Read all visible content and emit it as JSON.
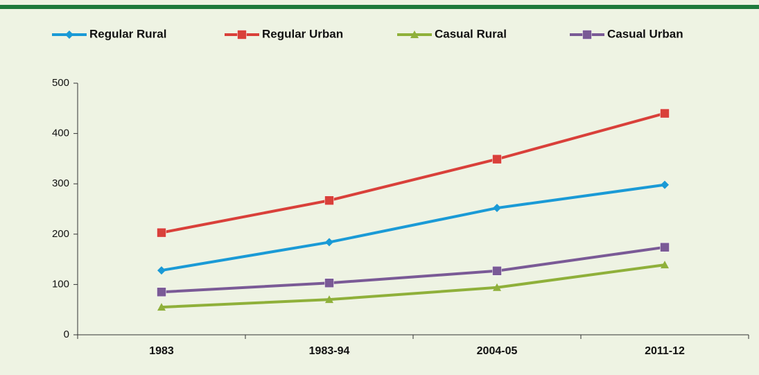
{
  "chart_data": {
    "type": "line",
    "categories": [
      "1983",
      "1983-94",
      "2004-05",
      "2011-12"
    ],
    "series": [
      {
        "name": "Regular Rural",
        "color": "#1a9ad6",
        "marker": "diamond",
        "values": [
          128,
          184,
          252,
          298
        ]
      },
      {
        "name": "Regular Urban",
        "color": "#d9403a",
        "marker": "square",
        "values": [
          203,
          267,
          349,
          440
        ]
      },
      {
        "name": "Casual Rural",
        "color": "#8fb03a",
        "marker": "triangle",
        "values": [
          55,
          70,
          94,
          139
        ]
      },
      {
        "name": "Casual Urban",
        "color": "#7a5a96",
        "marker": "square",
        "values": [
          85,
          103,
          127,
          174
        ]
      }
    ],
    "ylim": [
      0,
      500
    ],
    "yticks": [
      0,
      100,
      200,
      300,
      400,
      500
    ],
    "grid": false
  }
}
